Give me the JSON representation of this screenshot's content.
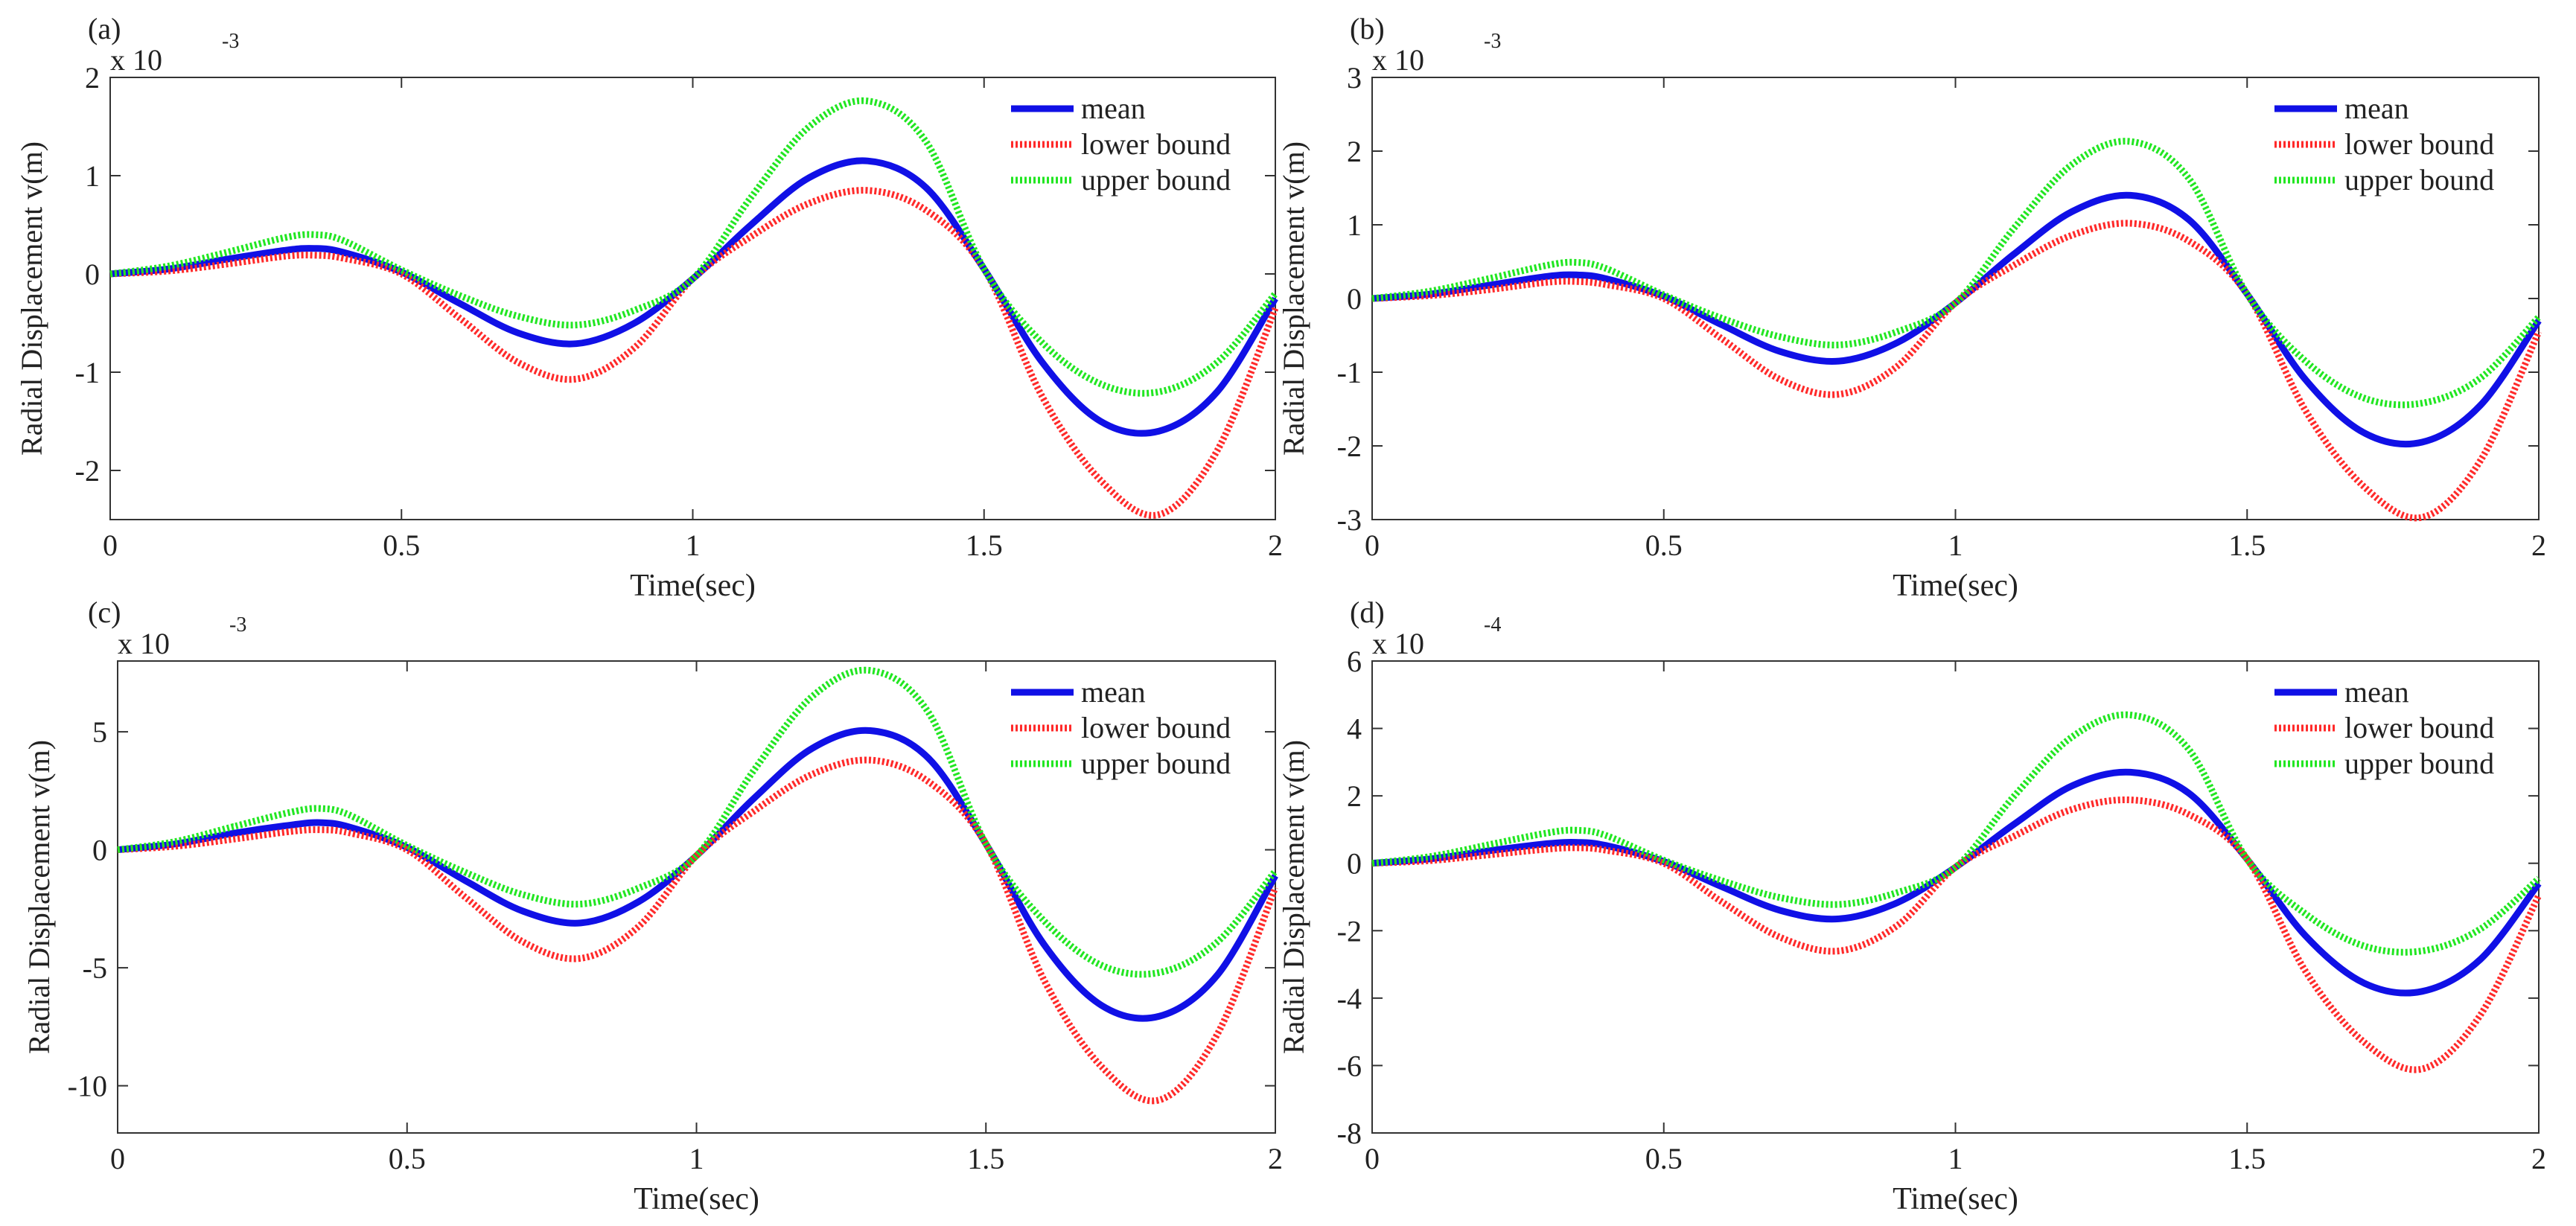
{
  "chart_data": [
    {
      "panel_label": "(a)",
      "type": "line",
      "xlabel": "Time(sec)",
      "ylabel": "Radial Displacement v(m)",
      "scale_base": "x 10",
      "scale_exp": "-3",
      "xlim": [
        0,
        2
      ],
      "ylim": [
        -2.5,
        2
      ],
      "xticks": [
        0,
        0.5,
        1,
        1.5,
        2
      ],
      "yticks": [
        -2,
        -1,
        0,
        1,
        2
      ],
      "xticklabels": [
        "0",
        "0.5",
        "1",
        "1.5",
        "2"
      ],
      "yticklabels": [
        "-2",
        "-1",
        "0",
        "1",
        "2"
      ],
      "x": [
        0,
        0.1,
        0.2,
        0.3,
        0.35,
        0.4,
        0.5,
        0.6,
        0.7,
        0.8,
        0.9,
        1.0,
        1.1,
        1.2,
        1.3,
        1.4,
        1.5,
        1.6,
        1.7,
        1.8,
        1.9,
        2.0
      ],
      "series": [
        {
          "name": "mean",
          "color": "#1010e6",
          "values": [
            0,
            0.05,
            0.15,
            0.24,
            0.26,
            0.22,
            0.02,
            -0.3,
            -0.6,
            -0.71,
            -0.5,
            -0.05,
            0.5,
            0.98,
            1.15,
            0.88,
            0.05,
            -0.9,
            -1.5,
            -1.6,
            -1.2,
            -0.25
          ]
        },
        {
          "name": "lower bound",
          "color": "#ff2a2a",
          "values": [
            0,
            0.03,
            0.1,
            0.18,
            0.19,
            0.16,
            0.0,
            -0.45,
            -0.9,
            -1.07,
            -0.75,
            -0.05,
            0.38,
            0.72,
            0.85,
            0.65,
            0.05,
            -1.25,
            -2.1,
            -2.45,
            -1.8,
            -0.35
          ]
        },
        {
          "name": "upper bound",
          "color": "#22e622",
          "values": [
            0,
            0.08,
            0.22,
            0.37,
            0.4,
            0.34,
            0.04,
            -0.22,
            -0.43,
            -0.52,
            -0.37,
            -0.05,
            0.78,
            1.5,
            1.76,
            1.35,
            0.05,
            -0.7,
            -1.12,
            -1.2,
            -0.9,
            -0.2
          ]
        }
      ]
    },
    {
      "panel_label": "(b)",
      "type": "line",
      "xlabel": "Time(sec)",
      "ylabel": "Radial Displacement v(m)",
      "scale_base": "x 10",
      "scale_exp": "-3",
      "xlim": [
        0,
        2
      ],
      "ylim": [
        -3,
        3
      ],
      "xticks": [
        0,
        0.5,
        1,
        1.5,
        2
      ],
      "yticks": [
        -3,
        -2,
        -1,
        0,
        1,
        2,
        3
      ],
      "xticklabels": [
        "0",
        "0.5",
        "1",
        "1.5",
        "2"
      ],
      "yticklabels": [
        "-3",
        "-2",
        "-1",
        "0",
        "1",
        "2",
        "3"
      ],
      "x": [
        0,
        0.1,
        0.2,
        0.3,
        0.35,
        0.4,
        0.5,
        0.6,
        0.7,
        0.8,
        0.9,
        1.0,
        1.1,
        1.2,
        1.3,
        1.4,
        1.5,
        1.6,
        1.7,
        1.8,
        1.9,
        2.0
      ],
      "series": [
        {
          "name": "mean",
          "color": "#1010e6",
          "values": [
            0,
            0.06,
            0.18,
            0.3,
            0.32,
            0.27,
            0.03,
            -0.36,
            -0.72,
            -0.85,
            -0.6,
            -0.06,
            0.6,
            1.18,
            1.4,
            1.07,
            0.06,
            -1.1,
            -1.82,
            -1.95,
            -1.45,
            -0.3
          ]
        },
        {
          "name": "lower bound",
          "color": "#ff2a2a",
          "values": [
            0,
            0.04,
            0.12,
            0.22,
            0.23,
            0.19,
            0.0,
            -0.55,
            -1.1,
            -1.3,
            -0.92,
            -0.06,
            0.45,
            0.86,
            1.02,
            0.78,
            0.06,
            -1.52,
            -2.55,
            -2.97,
            -2.2,
            -0.45
          ]
        },
        {
          "name": "upper bound",
          "color": "#22e622",
          "values": [
            0,
            0.1,
            0.27,
            0.45,
            0.49,
            0.41,
            0.05,
            -0.27,
            -0.52,
            -0.63,
            -0.45,
            -0.06,
            0.95,
            1.82,
            2.13,
            1.63,
            0.06,
            -0.85,
            -1.35,
            -1.42,
            -1.08,
            -0.25
          ]
        }
      ]
    },
    {
      "panel_label": "(c)",
      "type": "line",
      "xlabel": "Time(sec)",
      "ylabel": "Radial Displacement v(m)",
      "scale_base": "x 10",
      "scale_exp": "-3",
      "xlim": [
        0,
        2
      ],
      "ylim": [
        -12,
        8
      ],
      "xticks": [
        0,
        0.5,
        1,
        1.5,
        2
      ],
      "yticks": [
        -10,
        -5,
        0,
        5
      ],
      "xticklabels": [
        "0",
        "0.5",
        "1",
        "1.5",
        "2"
      ],
      "yticklabels": [
        "-10",
        "-5",
        "0",
        "5"
      ],
      "x": [
        0,
        0.1,
        0.2,
        0.3,
        0.35,
        0.4,
        0.5,
        0.6,
        0.7,
        0.8,
        0.9,
        1.0,
        1.1,
        1.2,
        1.3,
        1.4,
        1.5,
        1.6,
        1.7,
        1.8,
        1.9,
        2.0
      ],
      "series": [
        {
          "name": "mean",
          "color": "#1010e6",
          "values": [
            0,
            0.25,
            0.7,
            1.05,
            1.15,
            0.97,
            0.1,
            -1.3,
            -2.6,
            -3.1,
            -2.2,
            -0.25,
            2.2,
            4.3,
            5.05,
            3.9,
            0.25,
            -4.0,
            -6.6,
            -7.05,
            -5.3,
            -1.1
          ]
        },
        {
          "name": "lower bound",
          "color": "#ff2a2a",
          "values": [
            0,
            0.15,
            0.45,
            0.78,
            0.85,
            0.72,
            0.0,
            -2.0,
            -3.9,
            -4.6,
            -3.25,
            -0.25,
            1.65,
            3.2,
            3.8,
            2.9,
            0.25,
            -5.5,
            -9.2,
            -10.6,
            -7.8,
            -1.6
          ]
        },
        {
          "name": "upper bound",
          "color": "#22e622",
          "values": [
            0,
            0.35,
            0.98,
            1.6,
            1.75,
            1.48,
            0.18,
            -0.95,
            -1.9,
            -2.3,
            -1.62,
            -0.25,
            3.4,
            6.5,
            7.6,
            5.85,
            0.25,
            -3.0,
            -4.9,
            -5.2,
            -3.9,
            -0.9
          ]
        }
      ]
    },
    {
      "panel_label": "(d)",
      "type": "line",
      "xlabel": "Time(sec)",
      "ylabel": "Radial Displacement v(m)",
      "scale_base": "x 10",
      "scale_exp": "-4",
      "xlim": [
        0,
        2
      ],
      "ylim": [
        -8,
        6
      ],
      "xticks": [
        0,
        0.5,
        1,
        1.5,
        2
      ],
      "yticks": [
        -8,
        -6,
        -4,
        -2,
        0,
        2,
        4,
        6
      ],
      "xticklabels": [
        "0",
        "0.5",
        "1",
        "1.5",
        "2"
      ],
      "yticklabels": [
        "-8",
        "-6",
        "-4",
        "-2",
        "0",
        "2",
        "4",
        "6"
      ],
      "x": [
        0,
        0.1,
        0.2,
        0.3,
        0.35,
        0.4,
        0.5,
        0.6,
        0.7,
        0.8,
        0.9,
        1.0,
        1.1,
        1.2,
        1.3,
        1.4,
        1.5,
        1.6,
        1.7,
        1.8,
        1.9,
        2.0
      ],
      "series": [
        {
          "name": "mean",
          "color": "#1010e6",
          "values": [
            0,
            0.13,
            0.37,
            0.58,
            0.62,
            0.53,
            0.05,
            -0.7,
            -1.4,
            -1.65,
            -1.17,
            -0.12,
            1.15,
            2.3,
            2.7,
            2.08,
            0.12,
            -2.15,
            -3.55,
            -3.8,
            -2.85,
            -0.6
          ]
        },
        {
          "name": "lower bound",
          "color": "#ff2a2a",
          "values": [
            0,
            0.08,
            0.25,
            0.42,
            0.46,
            0.39,
            0.0,
            -1.15,
            -2.2,
            -2.6,
            -1.85,
            -0.12,
            0.8,
            1.6,
            1.88,
            1.45,
            0.12,
            -3.2,
            -5.3,
            -6.1,
            -4.5,
            -0.95
          ]
        },
        {
          "name": "upper bound",
          "color": "#22e622",
          "values": [
            0,
            0.2,
            0.55,
            0.9,
            0.98,
            0.83,
            0.09,
            -0.52,
            -1.02,
            -1.22,
            -0.87,
            -0.12,
            1.98,
            3.75,
            4.4,
            3.38,
            0.12,
            -1.5,
            -2.45,
            -2.6,
            -1.95,
            -0.45
          ]
        }
      ]
    }
  ]
}
